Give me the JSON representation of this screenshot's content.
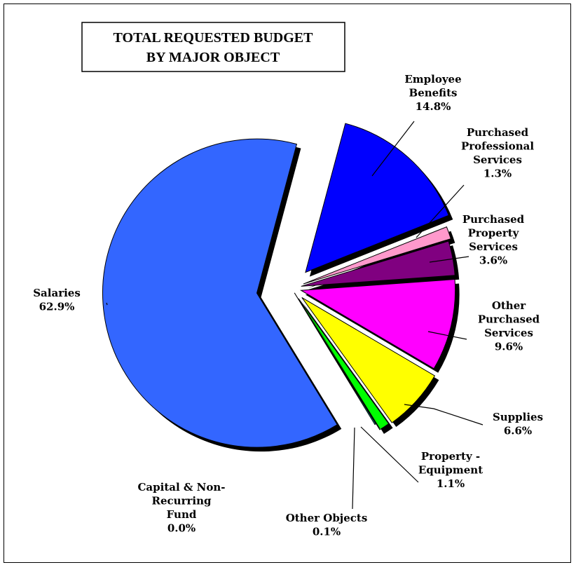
{
  "chart_data": {
    "type": "pie",
    "title_lines": [
      "TOTAL REQUESTED BUDGET",
      "BY MAJOR OBJECT"
    ],
    "slices": [
      {
        "name": "Employee Benefits",
        "label_lines": [
          "Employee",
          "Benefits",
          "14.8%"
        ],
        "value": 14.8,
        "color": "#0000ff"
      },
      {
        "name": "Purchased Professional Services",
        "label_lines": [
          "Purchased",
          "Professional",
          "Services",
          "1.3%"
        ],
        "value": 1.3,
        "color": "#ff99cc"
      },
      {
        "name": "Purchased Property Services",
        "label_lines": [
          "Purchased",
          "Property",
          "Services",
          "3.6%"
        ],
        "value": 3.6,
        "color": "#800080"
      },
      {
        "name": "Other Purchased Services",
        "label_lines": [
          "Other",
          "Purchased",
          "Services",
          "9.6%"
        ],
        "value": 9.6,
        "color": "#ff00ff"
      },
      {
        "name": "Supplies",
        "label_lines": [
          "Supplies",
          "6.6%"
        ],
        "value": 6.6,
        "color": "#ffff00"
      },
      {
        "name": "Property - Equipment",
        "label_lines": [
          "Property -",
          "Equipment",
          "1.1%"
        ],
        "value": 1.1,
        "color": "#00ff00"
      },
      {
        "name": "Other Objects",
        "label_lines": [
          "Other Objects",
          "0.1%"
        ],
        "value": 0.1,
        "color": "#00ffff"
      },
      {
        "name": "Capital & Non-Recurring Fund",
        "label_lines": [
          "Capital & Non-",
          "Recurring",
          "Fund",
          "0.0%"
        ],
        "value": 0.0,
        "color": "#ffffff"
      },
      {
        "name": "Salaries",
        "label_lines": [
          "Salaries",
          "62.9%"
        ],
        "value": 62.9,
        "color": "#3366ff"
      }
    ],
    "start_angle_deg": 15,
    "exploded": true,
    "legend": "none"
  }
}
